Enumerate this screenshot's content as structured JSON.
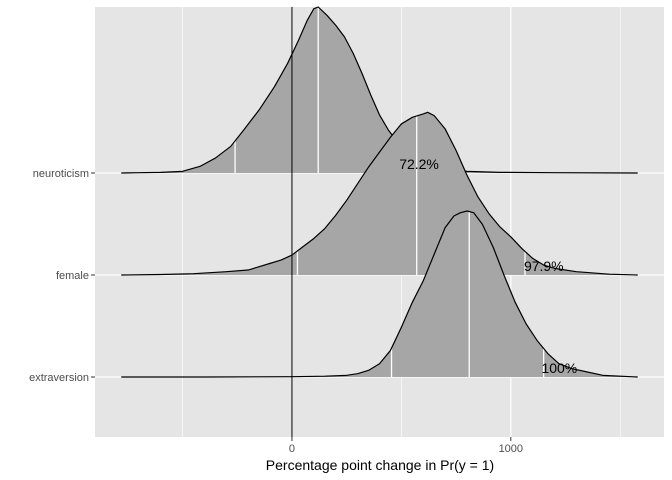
{
  "chart_data": {
    "type": "ridgeline",
    "title": "",
    "xlabel": "Percentage point change in Pr(y = 1)",
    "ylabel": "",
    "xlim": [
      -900,
      1700
    ],
    "x_ticks": [
      0,
      1000
    ],
    "x_minor_ticks": [
      -500,
      500,
      1500
    ],
    "reference_line_x": 0,
    "grid": true,
    "colors": {
      "panel_bg": "#e5e5e5",
      "grid_line": "#ffffff",
      "fill": "#a6a6a6",
      "outline": "#000000",
      "quantile_line": "#ffffff",
      "reference_line": "#000000"
    },
    "series": [
      {
        "name": "neuroticism",
        "x_range": [
          -780,
          1580
        ],
        "quantile_lines": [
          -260,
          120,
          510
        ],
        "label_text": "72.2%",
        "label_x": 490,
        "density": [
          [
            -780,
            0.0
          ],
          [
            -700,
            0.002
          ],
          [
            -600,
            0.004
          ],
          [
            -500,
            0.01
          ],
          [
            -420,
            0.04
          ],
          [
            -350,
            0.09
          ],
          [
            -280,
            0.16
          ],
          [
            -220,
            0.26
          ],
          [
            -150,
            0.38
          ],
          [
            -80,
            0.52
          ],
          [
            -20,
            0.66
          ],
          [
            30,
            0.8
          ],
          [
            70,
            0.92
          ],
          [
            100,
            0.99
          ],
          [
            120,
            1.0
          ],
          [
            160,
            0.95
          ],
          [
            200,
            0.89
          ],
          [
            240,
            0.82
          ],
          [
            280,
            0.72
          ],
          [
            320,
            0.6
          ],
          [
            360,
            0.47
          ],
          [
            400,
            0.35
          ],
          [
            440,
            0.26
          ],
          [
            480,
            0.19
          ],
          [
            520,
            0.14
          ],
          [
            560,
            0.09
          ],
          [
            600,
            0.06
          ],
          [
            650,
            0.04
          ],
          [
            700,
            0.02
          ],
          [
            800,
            0.01
          ],
          [
            950,
            0.004
          ],
          [
            1200,
            0.002
          ],
          [
            1580,
            0.0
          ]
        ]
      },
      {
        "name": "female",
        "x_range": [
          -780,
          1580
        ],
        "quantile_lines": [
          25,
          570,
          1065
        ],
        "label_text": "97.9%",
        "label_x": 1060,
        "density": [
          [
            -780,
            0.0
          ],
          [
            -600,
            0.003
          ],
          [
            -450,
            0.008
          ],
          [
            -300,
            0.02
          ],
          [
            -200,
            0.03
          ],
          [
            -150,
            0.05
          ],
          [
            -100,
            0.07
          ],
          [
            -50,
            0.09
          ],
          [
            0,
            0.12
          ],
          [
            50,
            0.17
          ],
          [
            100,
            0.22
          ],
          [
            150,
            0.28
          ],
          [
            200,
            0.36
          ],
          [
            250,
            0.45
          ],
          [
            300,
            0.55
          ],
          [
            350,
            0.65
          ],
          [
            400,
            0.74
          ],
          [
            450,
            0.83
          ],
          [
            500,
            0.91
          ],
          [
            550,
            0.95
          ],
          [
            600,
            0.97
          ],
          [
            620,
            0.98
          ],
          [
            650,
            0.96
          ],
          [
            700,
            0.88
          ],
          [
            750,
            0.75
          ],
          [
            800,
            0.6
          ],
          [
            850,
            0.47
          ],
          [
            900,
            0.37
          ],
          [
            950,
            0.29
          ],
          [
            1000,
            0.23
          ],
          [
            1050,
            0.16
          ],
          [
            1100,
            0.1
          ],
          [
            1150,
            0.06
          ],
          [
            1200,
            0.04
          ],
          [
            1300,
            0.02
          ],
          [
            1450,
            0.005
          ],
          [
            1580,
            0.0
          ]
        ]
      },
      {
        "name": "extraversion",
        "x_range": [
          -780,
          1580
        ],
        "quantile_lines": [
          455,
          810,
          1150
        ],
        "label_text": "100%",
        "label_x": 1140,
        "density": [
          [
            -780,
            0.0
          ],
          [
            -400,
            0.0
          ],
          [
            0,
            0.002
          ],
          [
            150,
            0.005
          ],
          [
            250,
            0.01
          ],
          [
            300,
            0.02
          ],
          [
            350,
            0.04
          ],
          [
            400,
            0.08
          ],
          [
            450,
            0.16
          ],
          [
            500,
            0.3
          ],
          [
            550,
            0.45
          ],
          [
            600,
            0.58
          ],
          [
            650,
            0.74
          ],
          [
            700,
            0.9
          ],
          [
            740,
            0.97
          ],
          [
            770,
            0.99
          ],
          [
            800,
            1.0
          ],
          [
            830,
            0.99
          ],
          [
            870,
            0.92
          ],
          [
            920,
            0.78
          ],
          [
            970,
            0.61
          ],
          [
            1020,
            0.45
          ],
          [
            1070,
            0.32
          ],
          [
            1120,
            0.22
          ],
          [
            1170,
            0.14
          ],
          [
            1220,
            0.08
          ],
          [
            1280,
            0.05
          ],
          [
            1350,
            0.03
          ],
          [
            1420,
            0.01
          ],
          [
            1580,
            0.0
          ]
        ]
      }
    ]
  }
}
